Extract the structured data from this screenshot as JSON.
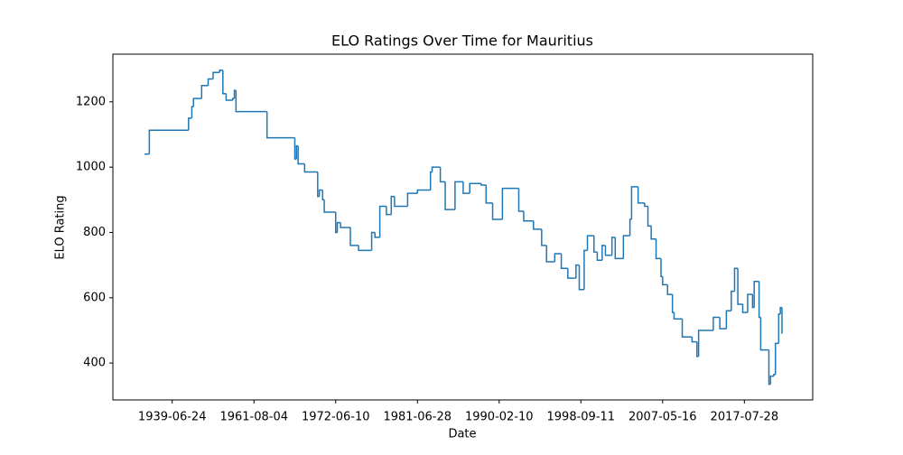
{
  "chart_data": {
    "type": "step-line",
    "title": "ELO Ratings Over Time for Mauritius",
    "x_label": "Date",
    "y_label": "ELO Rating",
    "xlim": [
      -19.3,
      408.8
    ],
    "ylim": [
      287,
      1346
    ],
    "xticks": [
      {
        "value": 17,
        "label": "1939-06-24"
      },
      {
        "value": 67,
        "label": "1961-08-04"
      },
      {
        "value": 117,
        "label": "1972-06-10"
      },
      {
        "value": 167,
        "label": "1981-06-28"
      },
      {
        "value": 217,
        "label": "1990-02-10"
      },
      {
        "value": 267,
        "label": "1998-09-11"
      },
      {
        "value": 317,
        "label": "2007-05-16"
      },
      {
        "value": 367,
        "label": "2017-07-28"
      }
    ],
    "yticks": [
      400,
      600,
      800,
      1000,
      1200
    ],
    "series": [
      {
        "color": "#1f77b4",
        "x": [
          0,
          3,
          27,
          29,
          30,
          35,
          39,
          42,
          46,
          48,
          50,
          54,
          55,
          56,
          75,
          92,
          93,
          94,
          98,
          106,
          107,
          109,
          110,
          117,
          118,
          120,
          126,
          131,
          139,
          141,
          144,
          148,
          151,
          153,
          161,
          167,
          175,
          176,
          181,
          184,
          190,
          195,
          199,
          206,
          209,
          213,
          219,
          229,
          232,
          238,
          243,
          246,
          251,
          255,
          259,
          264,
          266,
          269,
          271,
          275,
          277,
          280,
          282,
          286,
          288,
          293,
          297,
          298,
          302,
          306,
          308,
          310,
          313,
          316,
          317,
          320,
          323,
          324,
          329,
          335,
          338,
          339,
          348,
          352,
          356,
          359,
          361,
          363,
          366,
          369,
          372,
          373,
          376,
          377,
          382,
          383,
          385,
          386,
          388,
          389,
          390
        ],
        "values": [
          1040,
          1113,
          1150,
          1185,
          1210,
          1250,
          1270,
          1290,
          1297,
          1225,
          1205,
          1210,
          1235,
          1170,
          1090,
          1025,
          1065,
          1010,
          985,
          910,
          930,
          900,
          862,
          800,
          830,
          815,
          760,
          745,
          800,
          785,
          880,
          855,
          910,
          880,
          920,
          930,
          985,
          1000,
          955,
          870,
          955,
          920,
          950,
          945,
          890,
          840,
          935,
          865,
          835,
          810,
          760,
          710,
          735,
          690,
          660,
          700,
          625,
          745,
          790,
          740,
          715,
          760,
          730,
          785,
          720,
          790,
          840,
          940,
          890,
          880,
          820,
          780,
          720,
          665,
          640,
          610,
          555,
          535,
          480,
          465,
          420,
          500,
          540,
          505,
          560,
          620,
          690,
          580,
          555,
          610,
          570,
          650,
          540,
          440,
          335,
          360,
          365,
          460,
          550,
          570,
          490
        ]
      }
    ]
  }
}
